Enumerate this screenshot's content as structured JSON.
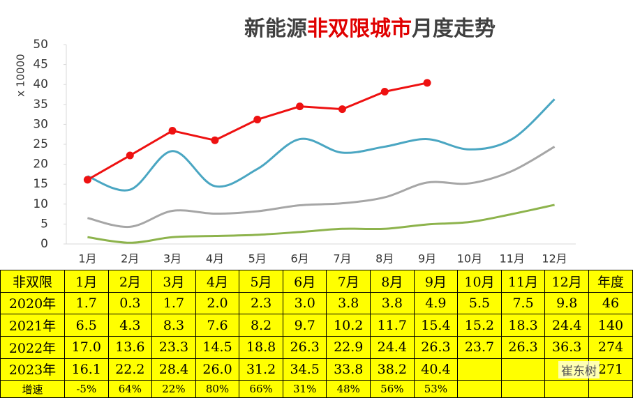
{
  "chart_data": {
    "type": "line",
    "title": [
      "新能源",
      "非双限城市",
      "月度走势"
    ],
    "title_colors": [
      "#404040",
      "#e00000",
      "#404040"
    ],
    "y_label": "x 10000",
    "categories": [
      "1月",
      "2月",
      "3月",
      "4月",
      "5月",
      "6月",
      "7月",
      "8月",
      "9月",
      "10月",
      "11月",
      "12月"
    ],
    "ylim": [
      0,
      50
    ],
    "yticks": [
      0,
      5,
      10,
      15,
      20,
      25,
      30,
      35,
      40,
      45,
      50
    ],
    "grid": false,
    "series": [
      {
        "name": "2020年",
        "color": "#8db34c",
        "smooth": true,
        "markers": false,
        "values": [
          1.7,
          0.3,
          1.7,
          2.0,
          2.3,
          3.0,
          3.8,
          3.8,
          4.9,
          5.5,
          7.5,
          9.8
        ]
      },
      {
        "name": "2021年",
        "color": "#a6a6a6",
        "smooth": true,
        "markers": false,
        "values": [
          6.5,
          4.3,
          8.3,
          7.6,
          8.2,
          9.7,
          10.2,
          11.7,
          15.4,
          15.2,
          18.3,
          24.4
        ]
      },
      {
        "name": "2022年",
        "color": "#4aa6c2",
        "smooth": true,
        "markers": false,
        "values": [
          17.0,
          13.6,
          23.3,
          14.5,
          18.8,
          26.3,
          22.9,
          24.4,
          26.3,
          23.7,
          26.3,
          36.3
        ]
      },
      {
        "name": "2023年",
        "color": "#ee1111",
        "smooth": false,
        "markers": true,
        "values": [
          16.1,
          22.2,
          28.4,
          26.0,
          31.2,
          34.5,
          33.8,
          38.2,
          40.4,
          null,
          null,
          null
        ]
      }
    ]
  },
  "table": {
    "header": [
      "非双限",
      "1月",
      "2月",
      "3月",
      "4月",
      "5月",
      "6月",
      "7月",
      "8月",
      "9月",
      "10月",
      "11月",
      "12月",
      "年度"
    ],
    "rows": [
      [
        "2020年",
        "1.7",
        "0.3",
        "1.7",
        "2.0",
        "2.3",
        "3.0",
        "3.8",
        "3.8",
        "4.9",
        "5.5",
        "7.5",
        "9.8",
        "46"
      ],
      [
        "2021年",
        "6.5",
        "4.3",
        "8.3",
        "7.6",
        "8.2",
        "9.7",
        "10.2",
        "11.7",
        "15.4",
        "15.2",
        "18.3",
        "24.4",
        "140"
      ],
      [
        "2022年",
        "17.0",
        "13.6",
        "23.3",
        "14.5",
        "18.8",
        "26.3",
        "22.9",
        "24.4",
        "26.3",
        "23.7",
        "26.3",
        "36.3",
        "274"
      ],
      [
        "2023年",
        "16.1",
        "22.2",
        "28.4",
        "26.0",
        "31.2",
        "34.5",
        "33.8",
        "38.2",
        "40.4",
        "",
        "",
        "",
        "271"
      ],
      [
        "增速",
        "-5%",
        "64%",
        "22%",
        "80%",
        "66%",
        "31%",
        "48%",
        "56%",
        "53%",
        "",
        "",
        "",
        ""
      ]
    ]
  },
  "watermark": "崔东树"
}
